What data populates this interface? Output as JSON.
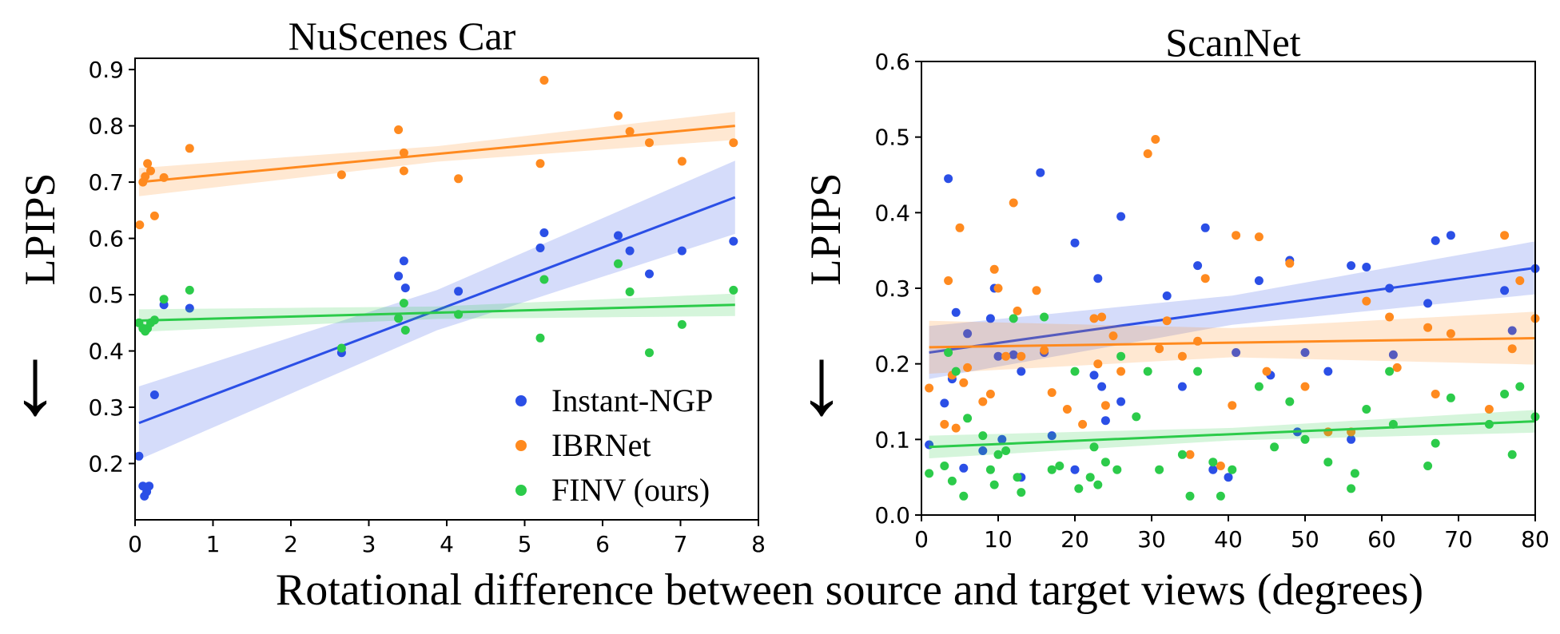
{
  "figure": {
    "shared_xlabel": "Rotational difference between source and target views (degrees)",
    "arrow_glyph": "↓",
    "colors": {
      "instant_ngp": "#2b4fe6",
      "ibrnet": "#ff8a1f",
      "finv": "#2ccb4a"
    }
  },
  "chart_data": [
    {
      "type": "scatter",
      "title": "NuScenes Car",
      "ylabel": "LPIPS",
      "xlabel": "",
      "xlim": [
        0,
        8
      ],
      "ylim": [
        0.1,
        0.92
      ],
      "xticks": [
        0,
        1,
        2,
        3,
        4,
        5,
        6,
        7,
        8
      ],
      "yticks": [
        0.2,
        0.3,
        0.4,
        0.5,
        0.6,
        0.7,
        0.8,
        0.9
      ],
      "legend": {
        "placement": "bottom-right"
      },
      "series": [
        {
          "name": "Instant-NGP",
          "color": "#2b4fe6",
          "trend": {
            "x0": 0.05,
            "y0": 0.272,
            "x1": 7.7,
            "y1": 0.673,
            "ci": 0.065
          },
          "points": [
            [
              0.05,
              0.213
            ],
            [
              0.1,
              0.16
            ],
            [
              0.12,
              0.142
            ],
            [
              0.15,
              0.15
            ],
            [
              0.18,
              0.16
            ],
            [
              0.25,
              0.322
            ],
            [
              0.37,
              0.482
            ],
            [
              0.7,
              0.476
            ],
            [
              2.65,
              0.397
            ],
            [
              3.38,
              0.533
            ],
            [
              3.45,
              0.56
            ],
            [
              3.47,
              0.512
            ],
            [
              4.15,
              0.506
            ],
            [
              5.2,
              0.583
            ],
            [
              5.25,
              0.61
            ],
            [
              6.2,
              0.605
            ],
            [
              6.35,
              0.578
            ],
            [
              6.6,
              0.537
            ],
            [
              7.02,
              0.578
            ],
            [
              7.68,
              0.595
            ]
          ]
        },
        {
          "name": "IBRNet",
          "color": "#ff8a1f",
          "trend": {
            "x0": 0.05,
            "y0": 0.7,
            "x1": 7.7,
            "y1": 0.8,
            "ci": 0.025
          },
          "points": [
            [
              0.06,
              0.624
            ],
            [
              0.1,
              0.7
            ],
            [
              0.13,
              0.71
            ],
            [
              0.16,
              0.733
            ],
            [
              0.2,
              0.72
            ],
            [
              0.25,
              0.64
            ],
            [
              0.37,
              0.708
            ],
            [
              0.7,
              0.76
            ],
            [
              2.65,
              0.713
            ],
            [
              3.38,
              0.793
            ],
            [
              3.45,
              0.752
            ],
            [
              3.45,
              0.72
            ],
            [
              4.15,
              0.706
            ],
            [
              5.2,
              0.733
            ],
            [
              5.25,
              0.881
            ],
            [
              6.2,
              0.818
            ],
            [
              6.35,
              0.79
            ],
            [
              6.6,
              0.77
            ],
            [
              7.02,
              0.737
            ],
            [
              7.68,
              0.77
            ]
          ]
        },
        {
          "name": "FINV (ours)",
          "color": "#2ccb4a",
          "trend": {
            "x0": 0.05,
            "y0": 0.454,
            "x1": 7.7,
            "y1": 0.482,
            "ci": 0.02
          },
          "points": [
            [
              0.05,
              0.45
            ],
            [
              0.1,
              0.44
            ],
            [
              0.13,
              0.435
            ],
            [
              0.16,
              0.44
            ],
            [
              0.2,
              0.45
            ],
            [
              0.25,
              0.455
            ],
            [
              0.37,
              0.492
            ],
            [
              0.7,
              0.508
            ],
            [
              2.65,
              0.405
            ],
            [
              3.38,
              0.458
            ],
            [
              3.45,
              0.485
            ],
            [
              3.47,
              0.437
            ],
            [
              4.15,
              0.465
            ],
            [
              5.2,
              0.423
            ],
            [
              5.25,
              0.527
            ],
            [
              6.2,
              0.555
            ],
            [
              6.35,
              0.505
            ],
            [
              6.6,
              0.397
            ],
            [
              7.02,
              0.447
            ],
            [
              7.68,
              0.508
            ]
          ]
        }
      ]
    },
    {
      "type": "scatter",
      "title": "ScanNet",
      "ylabel": "LPIPS",
      "xlabel": "",
      "xlim": [
        0,
        80
      ],
      "ylim": [
        0.0,
        0.6
      ],
      "xticks": [
        0,
        10,
        20,
        30,
        40,
        50,
        60,
        70,
        80
      ],
      "yticks": [
        0.0,
        0.1,
        0.2,
        0.3,
        0.4,
        0.5,
        0.6
      ],
      "series": [
        {
          "name": "Instant-NGP",
          "color": "#2b4fe6",
          "trend": {
            "x0": 1,
            "y0": 0.215,
            "x1": 80,
            "y1": 0.327,
            "ci": 0.035
          },
          "points": [
            [
              1,
              0.093
            ],
            [
              3,
              0.148
            ],
            [
              3.5,
              0.445
            ],
            [
              4,
              0.18
            ],
            [
              4.5,
              0.268
            ],
            [
              5.5,
              0.062
            ],
            [
              6,
              0.24
            ],
            [
              8,
              0.085
            ],
            [
              9,
              0.26
            ],
            [
              9.5,
              0.3
            ],
            [
              10,
              0.21
            ],
            [
              10.5,
              0.1
            ],
            [
              12,
              0.212
            ],
            [
              13,
              0.19
            ],
            [
              13,
              0.05
            ],
            [
              15.5,
              0.453
            ],
            [
              16,
              0.215
            ],
            [
              17,
              0.105
            ],
            [
              20,
              0.36
            ],
            [
              20,
              0.06
            ],
            [
              22.5,
              0.185
            ],
            [
              23,
              0.313
            ],
            [
              23.5,
              0.17
            ],
            [
              24,
              0.125
            ],
            [
              26,
              0.395
            ],
            [
              26,
              0.15
            ],
            [
              32,
              0.29
            ],
            [
              34,
              0.17
            ],
            [
              36,
              0.33
            ],
            [
              37,
              0.38
            ],
            [
              38,
              0.06
            ],
            [
              40,
              0.05
            ],
            [
              41,
              0.215
            ],
            [
              44,
              0.31
            ],
            [
              45.5,
              0.185
            ],
            [
              48,
              0.337
            ],
            [
              49,
              0.11
            ],
            [
              50,
              0.215
            ],
            [
              53,
              0.19
            ],
            [
              56,
              0.33
            ],
            [
              56,
              0.1
            ],
            [
              58,
              0.328
            ],
            [
              61,
              0.3
            ],
            [
              61.5,
              0.212
            ],
            [
              66,
              0.28
            ],
            [
              67,
              0.363
            ],
            [
              69,
              0.37
            ],
            [
              76,
              0.297
            ],
            [
              77,
              0.244
            ],
            [
              80,
              0.326
            ]
          ]
        },
        {
          "name": "IBRNet",
          "color": "#ff8a1f",
          "trend": {
            "x0": 1,
            "y0": 0.222,
            "x1": 80,
            "y1": 0.234,
            "ci": 0.035
          },
          "points": [
            [
              1,
              0.168
            ],
            [
              3,
              0.12
            ],
            [
              3.5,
              0.31
            ],
            [
              4,
              0.185
            ],
            [
              4.5,
              0.115
            ],
            [
              5,
              0.38
            ],
            [
              5.5,
              0.175
            ],
            [
              6,
              0.195
            ],
            [
              8,
              0.15
            ],
            [
              9,
              0.16
            ],
            [
              9.5,
              0.325
            ],
            [
              10,
              0.3
            ],
            [
              11,
              0.21
            ],
            [
              12,
              0.413
            ],
            [
              12.5,
              0.27
            ],
            [
              13,
              0.21
            ],
            [
              15,
              0.297
            ],
            [
              16,
              0.218
            ],
            [
              17,
              0.162
            ],
            [
              19,
              0.14
            ],
            [
              21,
              0.12
            ],
            [
              22.5,
              0.26
            ],
            [
              23,
              0.2
            ],
            [
              23.5,
              0.262
            ],
            [
              24,
              0.145
            ],
            [
              25,
              0.237
            ],
            [
              26,
              0.19
            ],
            [
              29.5,
              0.478
            ],
            [
              30.5,
              0.497
            ],
            [
              31,
              0.22
            ],
            [
              32,
              0.257
            ],
            [
              34,
              0.21
            ],
            [
              35,
              0.08
            ],
            [
              36,
              0.23
            ],
            [
              37,
              0.313
            ],
            [
              39,
              0.065
            ],
            [
              40.5,
              0.145
            ],
            [
              41,
              0.37
            ],
            [
              44,
              0.368
            ],
            [
              45,
              0.19
            ],
            [
              48,
              0.333
            ],
            [
              50,
              0.17
            ],
            [
              53,
              0.11
            ],
            [
              56,
              0.11
            ],
            [
              58,
              0.283
            ],
            [
              61,
              0.262
            ],
            [
              62,
              0.195
            ],
            [
              66,
              0.248
            ],
            [
              67,
              0.16
            ],
            [
              69,
              0.24
            ],
            [
              74,
              0.14
            ],
            [
              76,
              0.37
            ],
            [
              77,
              0.22
            ],
            [
              78,
              0.31
            ],
            [
              80,
              0.26
            ]
          ]
        },
        {
          "name": "FINV (ours)",
          "color": "#2ccb4a",
          "trend": {
            "x0": 1,
            "y0": 0.09,
            "x1": 80,
            "y1": 0.124,
            "ci": 0.015
          },
          "points": [
            [
              1,
              0.055
            ],
            [
              3,
              0.065
            ],
            [
              3.5,
              0.215
            ],
            [
              4,
              0.045
            ],
            [
              4.5,
              0.19
            ],
            [
              5.5,
              0.025
            ],
            [
              6,
              0.128
            ],
            [
              8,
              0.105
            ],
            [
              9,
              0.06
            ],
            [
              9.5,
              0.04
            ],
            [
              10,
              0.08
            ],
            [
              11,
              0.085
            ],
            [
              12,
              0.26
            ],
            [
              12.5,
              0.05
            ],
            [
              13,
              0.03
            ],
            [
              16,
              0.262
            ],
            [
              17,
              0.06
            ],
            [
              18,
              0.065
            ],
            [
              20,
              0.19
            ],
            [
              20.5,
              0.035
            ],
            [
              22,
              0.05
            ],
            [
              22.5,
              0.09
            ],
            [
              23,
              0.04
            ],
            [
              24,
              0.07
            ],
            [
              25.5,
              0.06
            ],
            [
              26,
              0.21
            ],
            [
              28,
              0.13
            ],
            [
              29.5,
              0.19
            ],
            [
              31,
              0.06
            ],
            [
              34,
              0.08
            ],
            [
              35,
              0.025
            ],
            [
              36,
              0.19
            ],
            [
              38,
              0.07
            ],
            [
              39,
              0.025
            ],
            [
              40.5,
              0.06
            ],
            [
              44,
              0.17
            ],
            [
              46,
              0.09
            ],
            [
              48,
              0.15
            ],
            [
              50,
              0.1
            ],
            [
              53,
              0.07
            ],
            [
              56,
              0.035
            ],
            [
              56.5,
              0.055
            ],
            [
              58,
              0.14
            ],
            [
              61,
              0.19
            ],
            [
              61.5,
              0.12
            ],
            [
              66,
              0.065
            ],
            [
              67,
              0.095
            ],
            [
              69,
              0.155
            ],
            [
              74,
              0.12
            ],
            [
              76,
              0.16
            ],
            [
              77,
              0.08
            ],
            [
              78,
              0.17
            ],
            [
              80,
              0.13
            ]
          ]
        }
      ]
    }
  ]
}
